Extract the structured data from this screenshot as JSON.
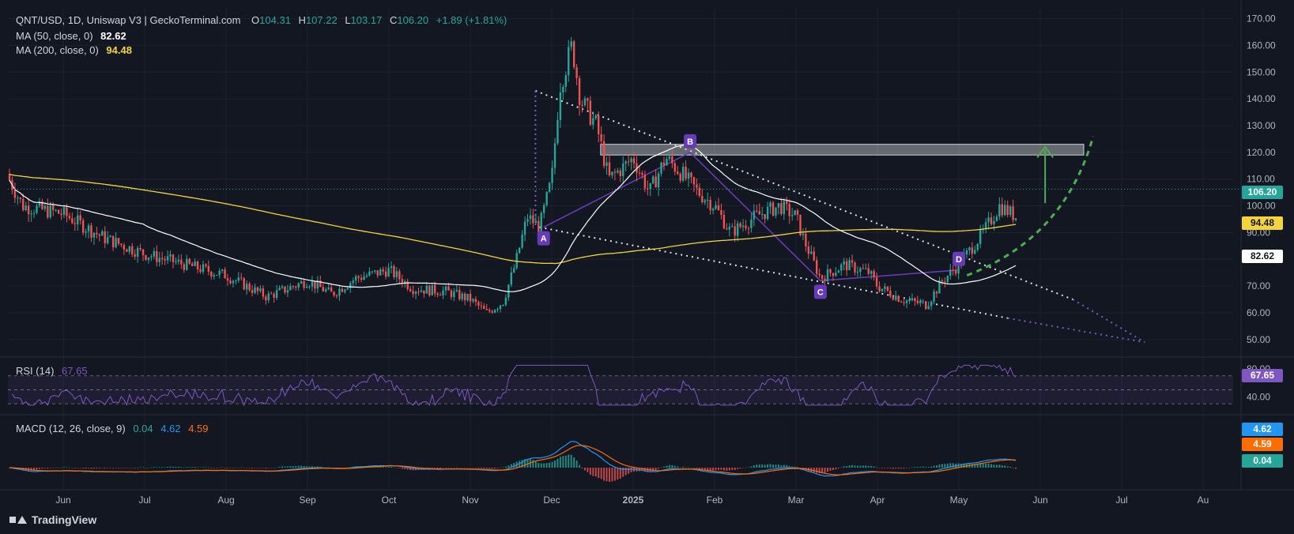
{
  "header": {
    "symbol": "QNT/USD, 1D, Uniswap V3 | GeckoTerminal.com",
    "o_label": "O",
    "o": "104.31",
    "h_label": "H",
    "h": "107.22",
    "l_label": "L",
    "l": "103.17",
    "c_label": "C",
    "c": "106.20",
    "change": "+1.89 (+1.81%)"
  },
  "indicators": {
    "ma50_label": "MA (50, close, 0)",
    "ma50_value": "82.62",
    "ma200_label": "MA (200, close, 0)",
    "ma200_value": "94.48",
    "rsi_label": "RSI (14)",
    "rsi_value": "67.65",
    "macd_label": "MACD (12, 26, close, 9)",
    "macd_hist": "0.04",
    "macd_line": "4.62",
    "macd_signal": "4.59"
  },
  "price_pills": {
    "last": "106.20",
    "ma200": "94.48",
    "ma50": "82.62"
  },
  "rsi_pill": "67.65",
  "macd_pills": {
    "line": "4.62",
    "signal": "4.59",
    "hist": "0.04"
  },
  "pattern_labels": [
    "A",
    "B",
    "C",
    "D"
  ],
  "footer": {
    "brand": "TradingView"
  },
  "colors": {
    "bg": "#131722",
    "up": "#26a69a",
    "down": "#ef5350",
    "ma50": "#ffffff",
    "ma200": "#f5d33c",
    "rsi": "#7e57c2",
    "macd": "#2196f3",
    "signal": "#ff6d00",
    "pattern": "#673ab7",
    "projection": "#4caf50"
  },
  "chart_data": {
    "type": "candlestick",
    "y_ticks": [
      170,
      160,
      150,
      140,
      130,
      120,
      110,
      100,
      90,
      80,
      70,
      60,
      50
    ],
    "x_ticks": [
      "Jun",
      "Jul",
      "Aug",
      "Sep",
      "Oct",
      "Nov",
      "Dec",
      "2025",
      "Feb",
      "Mar",
      "Apr",
      "May",
      "Jun",
      "Jul",
      "Au"
    ],
    "ylim": [
      47,
      174
    ],
    "rsi_ticks": [
      80,
      40
    ],
    "resistance_zone": [
      119,
      123
    ],
    "last_price": 106.2,
    "key_points": [
      {
        "date": "Jun",
        "value": 98
      },
      {
        "date": "Aug",
        "value": 65
      },
      {
        "date": "Oct",
        "value": 72
      },
      {
        "date": "Nov",
        "value": 57
      },
      {
        "date": "Dec",
        "value": 165
      },
      {
        "date": "2025",
        "value": 118
      },
      {
        "date": "Feb",
        "value": 87
      },
      {
        "date": "Mar",
        "value": 71
      },
      {
        "date": "Apr",
        "value": 61
      },
      {
        "date": "May",
        "value": 100
      },
      {
        "date": "Jun",
        "value": 106.2
      }
    ]
  }
}
